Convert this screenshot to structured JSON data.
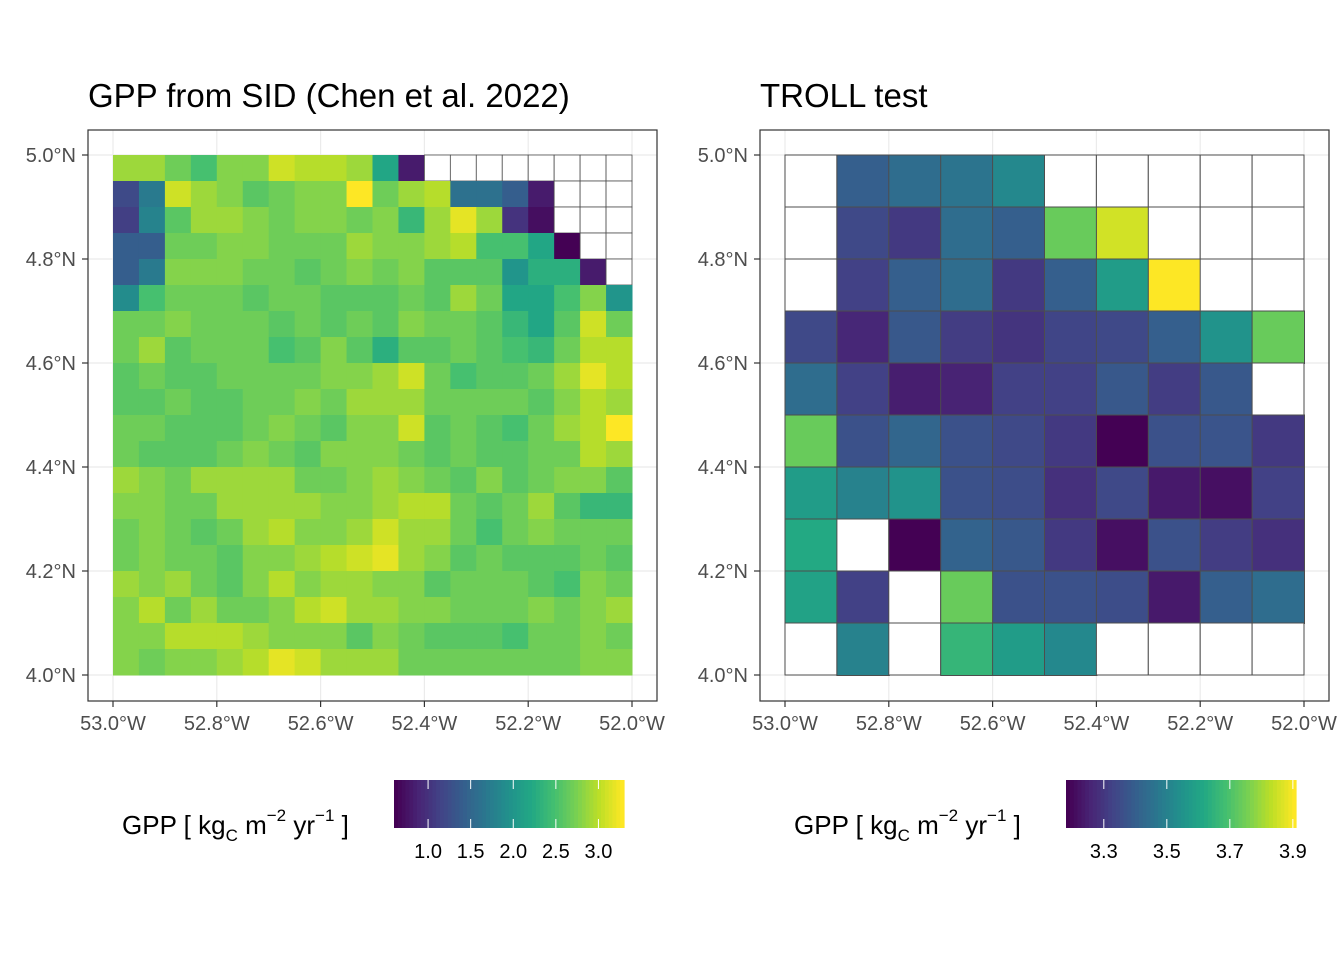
{
  "chart_data": [
    {
      "type": "heatmap",
      "title": "GPP from SID (Chen et al. 2022)",
      "x_ticks": [
        "53.0°W",
        "52.8°W",
        "52.6°W",
        "52.4°W",
        "52.2°W",
        "52.0°W"
      ],
      "y_ticks": [
        "4.0°N",
        "4.2°N",
        "4.4°N",
        "4.6°N",
        "4.8°N",
        "5.0°N"
      ],
      "xlim": [
        -53.0,
        -52.0
      ],
      "ylim": [
        4.0,
        5.0
      ],
      "cell_size_deg": 0.05,
      "grid_rows_top_to_bottom": true,
      "legend": {
        "title": "GPP [ kgC m-2 yr-1 ]",
        "title_parts": [
          "GPP [ kg",
          "C",
          " m",
          "−2",
          " yr",
          "−1",
          " ]"
        ],
        "ticks": [
          1.0,
          1.5,
          2.0,
          2.5,
          3.0
        ],
        "tick_labels": [
          "1.0",
          "1.5",
          "2.0",
          "2.5",
          "3.0"
        ],
        "range": [
          0.6,
          3.3
        ],
        "palette": "viridis",
        "position": "bottom"
      },
      "grid": [
        [
          2.9,
          2.9,
          2.7,
          2.5,
          2.8,
          2.8,
          3.1,
          3.0,
          3.0,
          2.9,
          2.2,
          0.8,
          null,
          null,
          null,
          null,
          null,
          null,
          null,
          null
        ],
        [
          1.2,
          1.7,
          3.1,
          2.9,
          2.8,
          2.6,
          2.7,
          2.8,
          2.8,
          3.3,
          2.7,
          2.9,
          3.0,
          1.6,
          1.6,
          1.4,
          0.8,
          null,
          null,
          null
        ],
        [
          1.1,
          1.8,
          2.6,
          2.9,
          2.9,
          2.8,
          2.7,
          2.8,
          2.8,
          2.7,
          2.8,
          2.4,
          2.9,
          3.2,
          2.9,
          1.0,
          0.7,
          null,
          null,
          null
        ],
        [
          1.4,
          1.4,
          2.7,
          2.7,
          2.8,
          2.8,
          2.7,
          2.7,
          2.7,
          2.9,
          2.8,
          2.8,
          2.9,
          3.0,
          2.5,
          2.5,
          2.2,
          0.6,
          null,
          null
        ],
        [
          1.4,
          1.7,
          2.8,
          2.8,
          2.8,
          2.7,
          2.7,
          2.6,
          2.7,
          2.8,
          2.7,
          2.8,
          2.6,
          2.6,
          2.6,
          2.0,
          2.3,
          2.3,
          0.8,
          null
        ],
        [
          1.9,
          2.5,
          2.7,
          2.7,
          2.7,
          2.6,
          2.7,
          2.7,
          2.6,
          2.6,
          2.6,
          2.7,
          2.6,
          2.9,
          2.7,
          2.2,
          2.2,
          2.5,
          2.8,
          2.0
        ],
        [
          2.7,
          2.7,
          2.8,
          2.7,
          2.7,
          2.7,
          2.6,
          2.7,
          2.6,
          2.7,
          2.6,
          2.8,
          2.7,
          2.7,
          2.6,
          2.4,
          2.2,
          2.6,
          3.1,
          2.7
        ],
        [
          2.7,
          2.9,
          2.6,
          2.7,
          2.7,
          2.7,
          2.5,
          2.6,
          2.8,
          2.6,
          2.3,
          2.6,
          2.6,
          2.7,
          2.6,
          2.5,
          2.4,
          2.7,
          3.0,
          3.0
        ],
        [
          2.6,
          2.7,
          2.6,
          2.6,
          2.7,
          2.7,
          2.7,
          2.7,
          2.8,
          2.8,
          2.9,
          3.1,
          2.7,
          2.5,
          2.6,
          2.6,
          2.7,
          2.9,
          3.2,
          3.0
        ],
        [
          2.6,
          2.6,
          2.7,
          2.6,
          2.6,
          2.7,
          2.7,
          2.8,
          2.7,
          2.9,
          2.9,
          2.9,
          2.7,
          2.7,
          2.7,
          2.7,
          2.6,
          2.8,
          3.0,
          2.9
        ],
        [
          2.7,
          2.7,
          2.6,
          2.6,
          2.6,
          2.7,
          2.8,
          2.7,
          2.6,
          2.8,
          2.8,
          3.1,
          2.6,
          2.7,
          2.6,
          2.5,
          2.7,
          2.9,
          3.0,
          3.3
        ],
        [
          2.7,
          2.6,
          2.6,
          2.6,
          2.7,
          2.8,
          2.7,
          2.6,
          2.8,
          2.8,
          2.8,
          2.7,
          2.6,
          2.7,
          2.6,
          2.6,
          2.7,
          2.7,
          3.0,
          2.9
        ],
        [
          2.9,
          2.8,
          2.7,
          2.9,
          2.9,
          2.9,
          2.9,
          2.7,
          2.7,
          2.8,
          2.9,
          2.8,
          2.7,
          2.6,
          2.8,
          2.6,
          2.7,
          2.8,
          2.8,
          2.6
        ],
        [
          2.8,
          2.8,
          2.7,
          2.7,
          2.9,
          2.9,
          2.9,
          2.9,
          2.8,
          2.8,
          2.9,
          3.0,
          3.0,
          2.7,
          2.6,
          2.7,
          2.9,
          2.6,
          2.4,
          2.4
        ],
        [
          2.7,
          2.8,
          2.7,
          2.6,
          2.7,
          2.9,
          3.0,
          2.8,
          2.8,
          2.9,
          3.1,
          2.9,
          2.9,
          2.7,
          2.5,
          2.7,
          2.8,
          2.7,
          2.7,
          2.7
        ],
        [
          2.7,
          2.8,
          2.7,
          2.7,
          2.6,
          2.8,
          2.8,
          2.9,
          3.0,
          3.1,
          3.2,
          2.9,
          2.8,
          2.6,
          2.7,
          2.6,
          2.6,
          2.6,
          2.7,
          2.6
        ],
        [
          2.9,
          2.8,
          2.9,
          2.7,
          2.6,
          2.8,
          3.0,
          2.8,
          2.9,
          2.9,
          2.8,
          2.8,
          2.6,
          2.7,
          2.7,
          2.7,
          2.6,
          2.5,
          2.8,
          2.7
        ],
        [
          2.8,
          3.0,
          2.7,
          2.9,
          2.7,
          2.7,
          2.8,
          3.0,
          3.1,
          2.9,
          2.9,
          2.8,
          2.8,
          2.7,
          2.7,
          2.7,
          2.8,
          2.7,
          2.8,
          2.9
        ],
        [
          2.8,
          2.8,
          3.0,
          3.0,
          3.0,
          2.9,
          2.8,
          2.8,
          2.8,
          2.6,
          2.8,
          2.7,
          2.6,
          2.6,
          2.6,
          2.5,
          2.7,
          2.7,
          2.8,
          2.7
        ],
        [
          2.8,
          2.7,
          2.8,
          2.8,
          2.9,
          3.0,
          3.2,
          3.1,
          2.9,
          2.9,
          2.9,
          2.7,
          2.7,
          2.7,
          2.7,
          2.7,
          2.7,
          2.7,
          2.8,
          2.8
        ]
      ]
    },
    {
      "type": "heatmap",
      "title": "TROLL test",
      "x_ticks": [
        "53.0°W",
        "52.8°W",
        "52.6°W",
        "52.4°W",
        "52.2°W",
        "52.0°W"
      ],
      "y_ticks": [
        "4.0°N",
        "4.2°N",
        "4.4°N",
        "4.6°N",
        "4.8°N",
        "5.0°N"
      ],
      "xlim": [
        -53.0,
        -52.0
      ],
      "ylim": [
        4.0,
        5.0
      ],
      "cell_size_deg": 0.1,
      "grid_rows_top_to_bottom": true,
      "legend": {
        "title": "GPP [ kgC m-2 yr-1 ]",
        "title_parts": [
          "GPP [ kg",
          "C",
          " m",
          "−2",
          " yr",
          "−1",
          " ]"
        ],
        "ticks": [
          3.3,
          3.5,
          3.7,
          3.9
        ],
        "tick_labels": [
          "3.3",
          "3.5",
          "3.7",
          "3.9"
        ],
        "range": [
          3.18,
          3.91
        ],
        "palette": "viridis",
        "position": "bottom"
      },
      "grid": [
        [
          null,
          3.4,
          3.44,
          3.46,
          3.52,
          null,
          null,
          null,
          null,
          null
        ],
        [
          null,
          3.34,
          3.3,
          3.44,
          3.4,
          3.74,
          3.86,
          null,
          null,
          null
        ],
        [
          null,
          3.32,
          3.4,
          3.44,
          3.3,
          3.4,
          3.58,
          3.91,
          null,
          null
        ],
        [
          3.34,
          3.26,
          3.38,
          3.31,
          3.29,
          3.33,
          3.34,
          3.4,
          3.55,
          3.74
        ],
        [
          3.44,
          3.32,
          3.24,
          3.25,
          3.32,
          3.32,
          3.38,
          3.31,
          3.38,
          null
        ],
        [
          3.74,
          3.36,
          3.42,
          3.36,
          3.34,
          3.3,
          3.18,
          3.36,
          3.37,
          3.3
        ],
        [
          3.58,
          3.5,
          3.55,
          3.36,
          3.35,
          3.28,
          3.34,
          3.23,
          3.21,
          3.32
        ],
        [
          3.62,
          null,
          3.18,
          3.41,
          3.38,
          3.3,
          3.21,
          3.36,
          3.31,
          3.28
        ],
        [
          3.6,
          3.32,
          null,
          3.74,
          3.36,
          3.36,
          3.35,
          3.23,
          3.4,
          3.44
        ],
        [
          null,
          3.5,
          null,
          3.66,
          3.58,
          3.52,
          null,
          null,
          null,
          null
        ]
      ]
    }
  ]
}
